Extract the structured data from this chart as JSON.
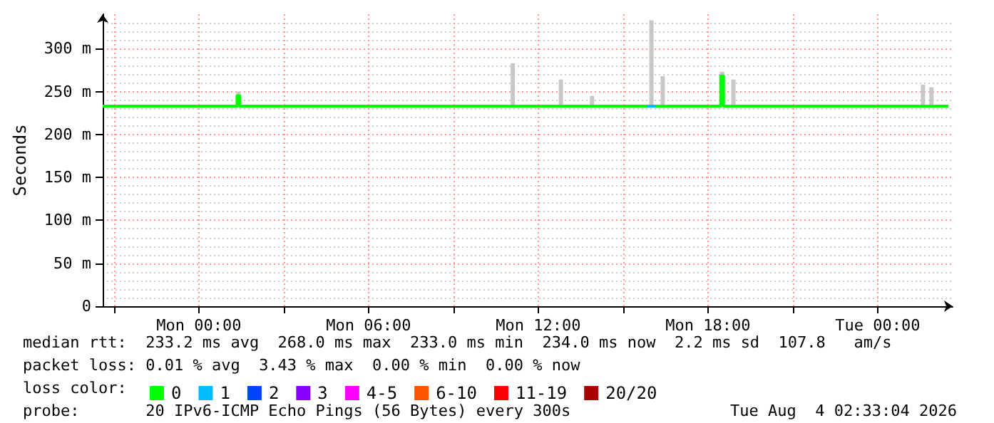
{
  "chart_data": {
    "type": "step",
    "ylabel": "Seconds",
    "legend_title": "loss color:",
    "xlim": [
      "2026-08-02T20:36",
      "2026-08-04T02:39"
    ],
    "ylim": [
      0,
      340
    ],
    "xticks": [
      {
        "value": "2026-08-02T21:00",
        "label": null
      },
      {
        "value": "2026-08-03T00:00",
        "label": "Mon 00:00"
      },
      {
        "value": "2026-08-03T03:00",
        "label": null
      },
      {
        "value": "2026-08-03T06:00",
        "label": "Mon 06:00"
      },
      {
        "value": "2026-08-03T09:00",
        "label": null
      },
      {
        "value": "2026-08-03T12:00",
        "label": "Mon 12:00"
      },
      {
        "value": "2026-08-03T15:00",
        "label": null
      },
      {
        "value": "2026-08-03T18:00",
        "label": "Mon 18:00"
      },
      {
        "value": "2026-08-03T21:00",
        "label": null
      },
      {
        "value": "2026-08-04T00:00",
        "label": "Tue 00:00"
      }
    ],
    "yticks": [
      0,
      {
        "value": 50,
        "label": "50 m"
      },
      {
        "value": 100,
        "label": "100 m"
      },
      {
        "value": 150,
        "label": "150 m"
      },
      {
        "value": 200,
        "label": "200 m"
      },
      {
        "value": 250,
        "label": "250 m"
      },
      {
        "value": 300,
        "label": "300 m"
      }
    ],
    "grid": true,
    "legend": "bottom",
    "series": [
      {
        "type": "bar",
        "color": "#c8c8c8",
        "x": [
          "2026-08-03T01:24",
          "2026-08-03T11:06",
          "2026-08-03T12:48",
          "2026-08-03T13:54",
          "2026-08-03T16:00",
          "2026-08-03T16:24",
          "2026-08-03T18:30",
          "2026-08-03T18:54",
          "2026-08-04T01:36",
          "2026-08-04T01:54"
        ],
        "base": [
          233,
          233,
          233,
          233,
          233,
          233,
          233,
          233,
          233,
          233
        ],
        "values": [
          17,
          50,
          31,
          12,
          100,
          35,
          40,
          31,
          25,
          22
        ]
      },
      {
        "name": "0",
        "color": "#00ff00",
        "x": [
          "2026-08-02T20:36",
          "2026-08-03T01:18",
          "2026-08-03T01:24",
          "2026-08-03T01:30",
          "2026-08-03T15:50",
          "2026-08-03T16:00",
          "2026-08-03T16:10",
          "2026-08-03T18:24",
          "2026-08-03T18:30",
          "2026-08-03T18:36",
          "2026-08-04T02:30"
        ],
        "values": [
          233,
          233,
          245,
          233,
          233,
          null,
          233,
          233,
          268,
          233,
          233
        ]
      },
      {
        "name": "1",
        "color": "#00bbff",
        "x": [
          "2026-08-03T15:50",
          "2026-08-03T16:10"
        ],
        "values": [
          233,
          233
        ]
      },
      {
        "name": "2",
        "color": "#0044ff"
      },
      {
        "name": "3",
        "color": "#8800ff"
      },
      {
        "name": "4-5",
        "color": "#ff00ff"
      },
      {
        "name": "6-10",
        "color": "#ff5500"
      },
      {
        "name": "11-19",
        "color": "#ff0000"
      },
      {
        "name": "20/20",
        "color": "#aa0000"
      }
    ],
    "annotations": [
      "median rtt:  233.2 ms avg  268.0 ms max  233.0 ms min  234.0 ms now  2.2 ms sd  107.8   am/s",
      "packet loss: 0.01 % avg  3.43 % max  0.00 % min  0.00 % now",
      "probe:       20 IPv6-ICMP Echo Pings (56 Bytes) every 300s",
      "Tue Aug  4 02:33:04 2026"
    ]
  }
}
